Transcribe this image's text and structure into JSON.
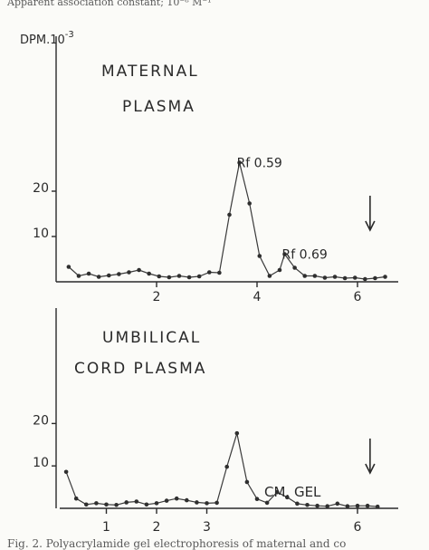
{
  "header_text": "Apparent association constant; 10⁻⁸ M⁻¹",
  "footer_text": "Fig. 2. Polyacrylamide gel electrophoresis of maternal and co",
  "y_axis_label_base": "DPM.10",
  "y_axis_label_exp": "-3",
  "x_axis_label": "CM. GEL",
  "arrow_symbol": "down-arrow",
  "chart_data": [
    {
      "type": "line",
      "panel_label_line1": "MATERNAL",
      "panel_label_line2": "PLASMA",
      "ylabel": "DPM.10-3",
      "xlabel": "",
      "ylim": [
        0,
        30
      ],
      "xlim": [
        0,
        6.8
      ],
      "y_ticks": [
        10,
        20
      ],
      "x_ticks": [
        2,
        4,
        6
      ],
      "grid": false,
      "annotations": [
        {
          "text": "Rf 0.59",
          "x": 3.65,
          "y": 26.5
        },
        {
          "text": "Rf 0.69",
          "x": 4.55,
          "y": 6.3
        }
      ],
      "arrow_x": 6.25,
      "x": [
        0.25,
        0.45,
        0.65,
        0.85,
        1.05,
        1.25,
        1.45,
        1.65,
        1.85,
        2.05,
        2.25,
        2.45,
        2.65,
        2.85,
        3.05,
        3.25,
        3.45,
        3.65,
        3.85,
        4.05,
        4.25,
        4.45,
        4.55,
        4.75,
        4.95,
        5.15,
        5.35,
        5.55,
        5.75,
        5.95,
        6.15,
        6.35,
        6.55
      ],
      "y": [
        3.3,
        1.3,
        1.8,
        1.1,
        1.4,
        1.7,
        2.1,
        2.6,
        1.8,
        1.2,
        1.0,
        1.3,
        1.0,
        1.2,
        2.1,
        2.0,
        14.8,
        26.3,
        17.3,
        5.7,
        1.3,
        2.6,
        6.1,
        3.1,
        1.3,
        1.3,
        0.9,
        1.1,
        0.8,
        0.9,
        0.6,
        0.8,
        1.1
      ]
    },
    {
      "type": "line",
      "panel_label_line1": "UMBILICAL",
      "panel_label_line2": "CORD PLASMA",
      "ylabel": "",
      "xlabel": "CM. GEL",
      "ylim": [
        0,
        20
      ],
      "xlim": [
        0,
        6.8
      ],
      "y_ticks": [
        10,
        20
      ],
      "x_ticks": [
        1,
        2,
        3,
        6
      ],
      "grid": false,
      "arrow_x": 6.25,
      "x": [
        0.2,
        0.4,
        0.6,
        0.8,
        1.0,
        1.2,
        1.4,
        1.6,
        1.8,
        2.0,
        2.2,
        2.4,
        2.6,
        2.8,
        3.0,
        3.2,
        3.4,
        3.6,
        3.8,
        4.0,
        4.2,
        4.4,
        4.6,
        4.8,
        5.0,
        5.2,
        5.4,
        5.6,
        5.8,
        6.0,
        6.2,
        6.4
      ],
      "y": [
        8.6,
        2.3,
        0.9,
        1.2,
        0.9,
        0.8,
        1.4,
        1.6,
        0.9,
        1.2,
        1.8,
        2.3,
        1.9,
        1.4,
        1.2,
        1.3,
        9.8,
        17.7,
        6.2,
        2.2,
        1.3,
        3.8,
        2.6,
        1.1,
        0.8,
        0.6,
        0.5,
        1.1,
        0.5,
        0.6,
        0.6,
        0.4
      ]
    }
  ]
}
